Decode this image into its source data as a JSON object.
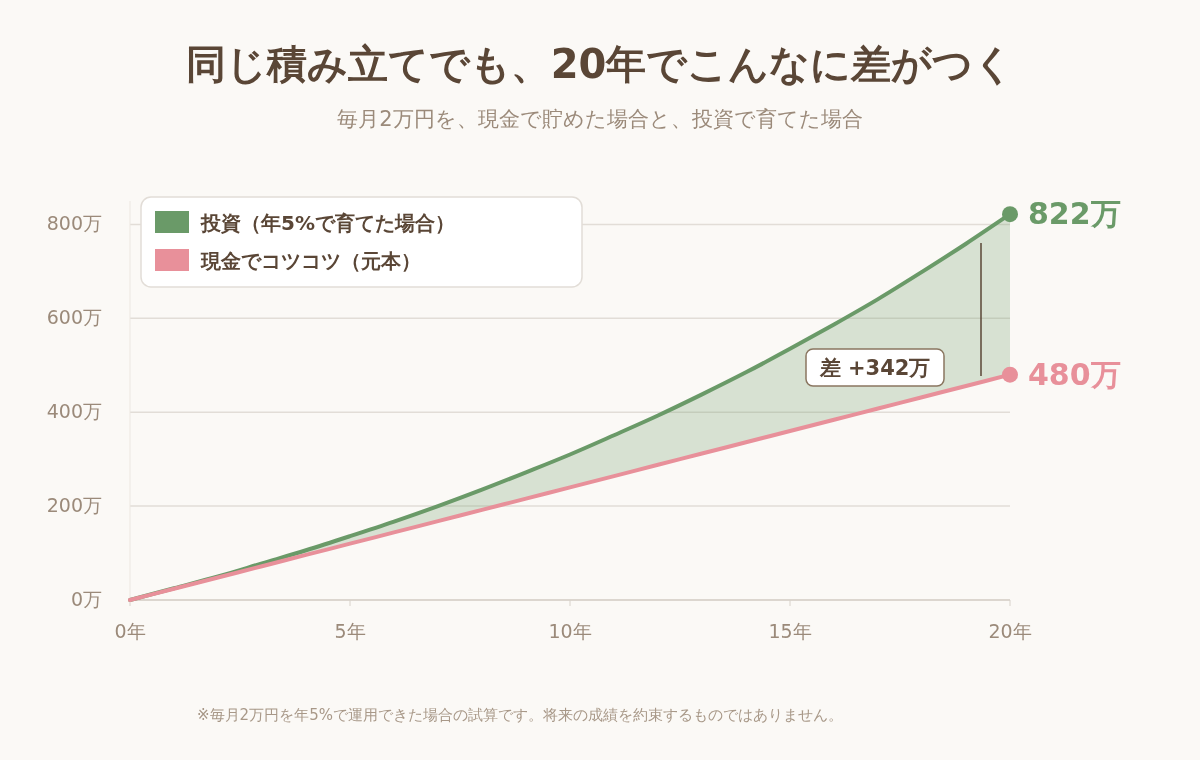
{
  "chart_data": {
    "type": "line",
    "title": "同じ積み立てでも、20年でこんなに差がつく",
    "subtitle": "毎月2万円を、現金で貯めた場合と、投資で育てた場合",
    "x": [
      0,
      1,
      2,
      3,
      4,
      5,
      6,
      7,
      8,
      9,
      10,
      11,
      12,
      13,
      14,
      15,
      16,
      17,
      18,
      19,
      20
    ],
    "series": [
      {
        "name": "投資（年5%で育てた場合）",
        "type": "area",
        "color": "#6a9a68",
        "values": [
          0,
          25,
          50,
          78,
          106,
          136,
          167,
          200,
          235,
          272,
          310,
          351,
          393,
          438,
          485,
          535,
          587,
          641,
          699,
          759,
          822
        ],
        "value_labels": [
          null,
          null,
          null,
          null,
          null,
          null,
          null,
          null,
          null,
          null,
          null,
          null,
          null,
          null,
          null,
          null,
          null,
          null,
          null,
          null,
          "822万"
        ]
      },
      {
        "name": "現金でコツコツ（元本）",
        "color": "#e8909a",
        "values": [
          0,
          24,
          48,
          72,
          96,
          120,
          144,
          168,
          192,
          216,
          240,
          264,
          288,
          312,
          336,
          360,
          384,
          408,
          432,
          456,
          480
        ],
        "value_labels": [
          null,
          null,
          null,
          null,
          null,
          null,
          null,
          null,
          null,
          null,
          null,
          null,
          null,
          null,
          null,
          null,
          null,
          null,
          null,
          null,
          "480万"
        ]
      }
    ],
    "xlim": [
      0,
      20
    ],
    "xticks": [
      {
        "value": 0,
        "label": "0年"
      },
      {
        "value": 5,
        "label": "5年"
      },
      {
        "value": 10,
        "label": "10年"
      },
      {
        "value": 15,
        "label": "15年"
      },
      {
        "value": 20,
        "label": "20年"
      }
    ],
    "ylim": [
      0,
      850
    ],
    "yticks": [
      {
        "value": 0,
        "label": "0万"
      },
      {
        "value": 200,
        "label": "200万"
      },
      {
        "value": 400,
        "label": "400万"
      },
      {
        "value": 600,
        "label": "600万"
      },
      {
        "value": 800,
        "label": "800万"
      }
    ],
    "grid": "y",
    "legend": "top left",
    "marker": "none",
    "annotations": [
      "差 +342万",
      "※毎月2万円を年5%で運用できた場合の試算です。将来の成績を約束するものではありません。"
    ]
  }
}
